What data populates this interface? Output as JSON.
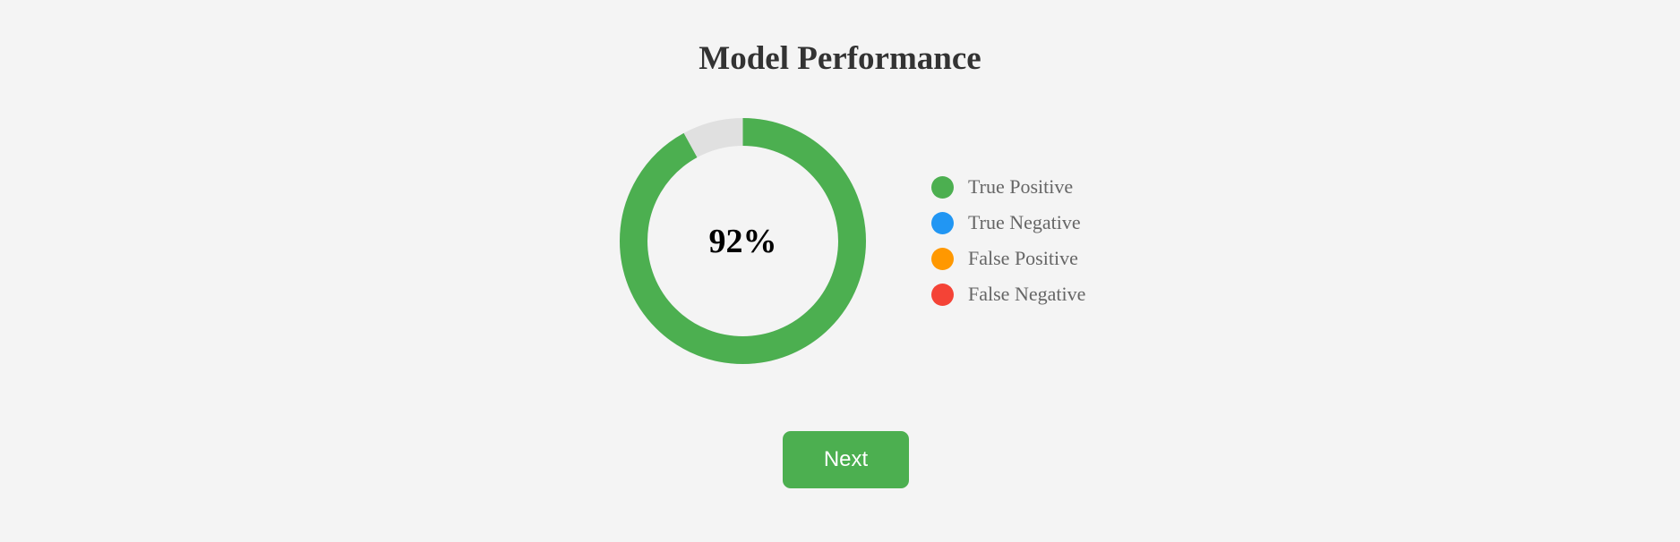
{
  "title": "Model Performance",
  "donut": {
    "value_percent": 92,
    "center_label": "92%",
    "fill_color": "#4caf50",
    "track_color": "#e0e0e0"
  },
  "legend": [
    {
      "label": "True Positive",
      "color": "#4caf50"
    },
    {
      "label": "True Negative",
      "color": "#2196f3"
    },
    {
      "label": "False Positive",
      "color": "#ff9800"
    },
    {
      "label": "False Negative",
      "color": "#f44336"
    }
  ],
  "next_button_label": "Next"
}
